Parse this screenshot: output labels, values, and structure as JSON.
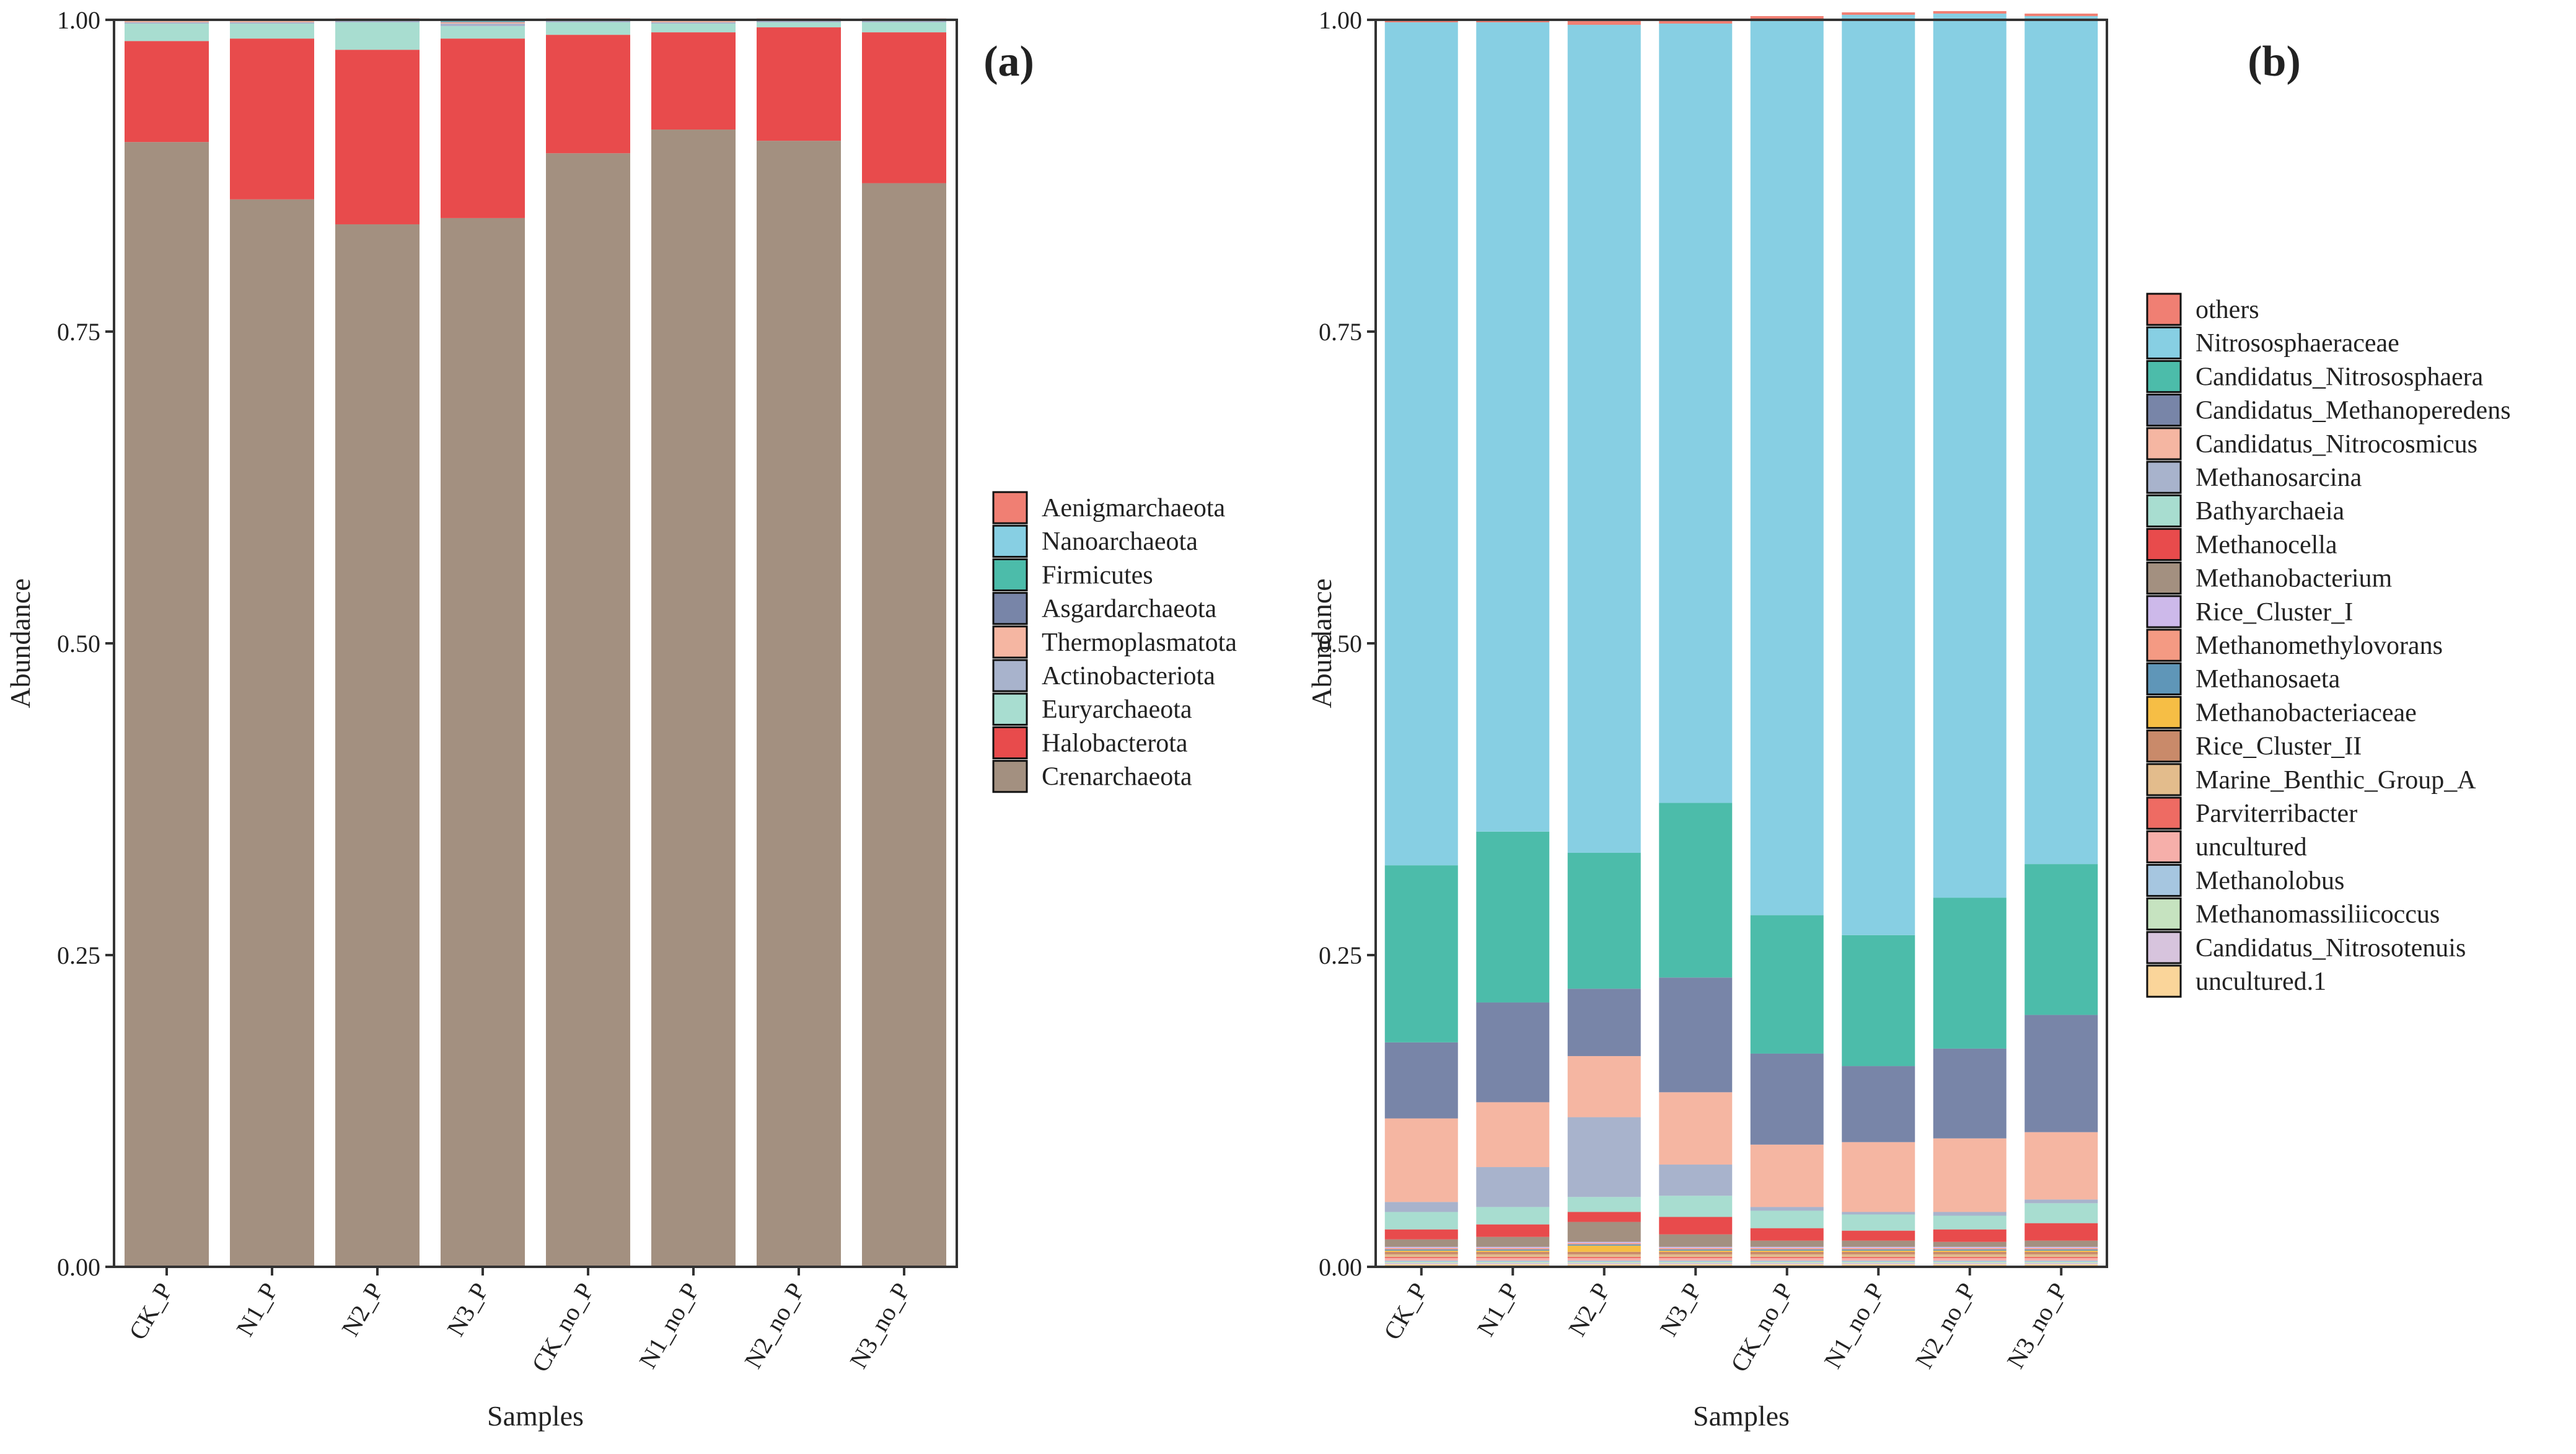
{
  "chart_data": [
    {
      "panel_label": "(a)",
      "type": "bar",
      "stacked": true,
      "xlabel": "Samples",
      "ylabel": "Abundance",
      "ylim": [
        0,
        1
      ],
      "y_ticks": [
        "0.00",
        "0.25",
        "0.50",
        "0.75",
        "1.00"
      ],
      "categories": [
        "CK_P",
        "N1_P",
        "N2_P",
        "N3_P",
        "CK_no_P",
        "N1_no_P",
        "N2_no_P",
        "N3_no_P"
      ],
      "legend_position": "right",
      "series": [
        {
          "name": "Crenarchaeota",
          "color": "#A39080",
          "values": [
            0.902,
            0.856,
            0.836,
            0.841,
            0.893,
            0.912,
            0.903,
            0.869
          ]
        },
        {
          "name": "Halobacterota",
          "color": "#E84B4C",
          "values": [
            0.081,
            0.129,
            0.14,
            0.144,
            0.095,
            0.078,
            0.091,
            0.121
          ]
        },
        {
          "name": "Euryarchaeota",
          "color": "#A8DDD0",
          "values": [
            0.014,
            0.012,
            0.022,
            0.01,
            0.01,
            0.007,
            0.004,
            0.008
          ]
        },
        {
          "name": "Actinobacteriota",
          "color": "#A8B3CC",
          "values": [
            0.001,
            0.001,
            0.001,
            0.002,
            0.001,
            0.001,
            0.001,
            0.001
          ]
        },
        {
          "name": "Thermoplasmatota",
          "color": "#F5B6A2",
          "values": [
            0.001,
            0.001,
            0.001,
            0.001,
            0.001,
            0.001,
            0.001,
            0.001
          ]
        },
        {
          "name": "Asgardarchaeota",
          "color": "#7885A8",
          "values": [
            0.0005,
            0.0005,
            0.0005,
            0.0005,
            0.0005,
            0.0005,
            0.0005,
            0.0005
          ]
        },
        {
          "name": "Firmicutes",
          "color": "#4CBCAA",
          "values": [
            0.0003,
            0.0003,
            0.0003,
            0.0003,
            0.0003,
            0.0003,
            0.0003,
            0.0003
          ]
        },
        {
          "name": "Nanoarchaeota",
          "color": "#87CFE3",
          "values": [
            0.0002,
            0.0002,
            0.0002,
            0.0002,
            0.0002,
            0.0002,
            0.0002,
            0.0002
          ]
        },
        {
          "name": "Aenigmarchaeota",
          "color": "#F07F73",
          "values": [
            0.0001,
            0.0001,
            0.0001,
            0.0001,
            0.0001,
            0.0001,
            0.0001,
            0.0001
          ]
        }
      ]
    },
    {
      "panel_label": "(b)",
      "type": "bar",
      "stacked": true,
      "xlabel": "Samples",
      "ylabel": "Abundance",
      "ylim": [
        0,
        1
      ],
      "y_ticks": [
        "0.00",
        "0.25",
        "0.50",
        "0.75",
        "1.00"
      ],
      "categories": [
        "CK_P",
        "N1_P",
        "N2_P",
        "N3_P",
        "CK_no_P",
        "N1_no_P",
        "N2_no_P",
        "N3_no_P"
      ],
      "legend_position": "right",
      "series": [
        {
          "name": "uncultured.1",
          "color": "#FAD59A",
          "values": [
            0.002,
            0.002,
            0.002,
            0.002,
            0.002,
            0.002,
            0.002,
            0.002
          ]
        },
        {
          "name": "Candidatus_Nitrosotenuis",
          "color": "#D7C4DD",
          "values": [
            0.001,
            0.001,
            0.001,
            0.001,
            0.001,
            0.001,
            0.001,
            0.001
          ]
        },
        {
          "name": "Methanomassiliicoccus",
          "color": "#C6E3C0",
          "values": [
            0.001,
            0.001,
            0.001,
            0.001,
            0.001,
            0.001,
            0.001,
            0.001
          ]
        },
        {
          "name": "Methanolobus",
          "color": "#A6C6E0",
          "values": [
            0.001,
            0.001,
            0.001,
            0.001,
            0.001,
            0.001,
            0.001,
            0.001
          ]
        },
        {
          "name": "uncultured",
          "color": "#F6AFAA",
          "values": [
            0.002,
            0.002,
            0.002,
            0.002,
            0.002,
            0.002,
            0.002,
            0.002
          ]
        },
        {
          "name": "Parviterribacter",
          "color": "#EE6B63",
          "values": [
            0.001,
            0.001,
            0.001,
            0.001,
            0.001,
            0.001,
            0.001,
            0.001
          ]
        },
        {
          "name": "Marine_Benthic_Group_A",
          "color": "#E3BC8C",
          "values": [
            0.002,
            0.002,
            0.002,
            0.002,
            0.002,
            0.002,
            0.002,
            0.002
          ]
        },
        {
          "name": "Rice_Cluster_II",
          "color": "#C98A6A",
          "values": [
            0.002,
            0.002,
            0.002,
            0.002,
            0.002,
            0.002,
            0.002,
            0.002
          ]
        },
        {
          "name": "Methanobacteriaceae",
          "color": "#F6BE45",
          "values": [
            0.001,
            0.001,
            0.005,
            0.001,
            0.001,
            0.001,
            0.001,
            0.001
          ]
        },
        {
          "name": "Methanosaeta",
          "color": "#5F96B8",
          "values": [
            0.001,
            0.001,
            0.001,
            0.001,
            0.001,
            0.001,
            0.001,
            0.001
          ]
        },
        {
          "name": "Methanomethylovorans",
          "color": "#F49A83",
          "values": [
            0.001,
            0.001,
            0.001,
            0.001,
            0.001,
            0.001,
            0.001,
            0.001
          ]
        },
        {
          "name": "Rice_Cluster_I",
          "color": "#CDB9EA",
          "values": [
            0.001,
            0.001,
            0.001,
            0.001,
            0.001,
            0.001,
            0.001,
            0.001
          ]
        },
        {
          "name": "Methanobacterium",
          "color": "#A39080",
          "values": [
            0.006,
            0.008,
            0.016,
            0.01,
            0.005,
            0.005,
            0.004,
            0.005
          ]
        },
        {
          "name": "Methanocella",
          "color": "#E84B4C",
          "values": [
            0.008,
            0.01,
            0.008,
            0.014,
            0.01,
            0.008,
            0.01,
            0.014
          ]
        },
        {
          "name": "Bathyarchaeia",
          "color": "#A8DDD0",
          "values": [
            0.014,
            0.014,
            0.012,
            0.017,
            0.014,
            0.013,
            0.011,
            0.016
          ]
        },
        {
          "name": "Methanosarcina",
          "color": "#A8B3CC",
          "values": [
            0.008,
            0.032,
            0.064,
            0.025,
            0.003,
            0.002,
            0.003,
            0.003
          ]
        },
        {
          "name": "Candidatus_Nitrocosmicus",
          "color": "#F5B6A2",
          "values": [
            0.067,
            0.052,
            0.049,
            0.058,
            0.05,
            0.056,
            0.059,
            0.054
          ]
        },
        {
          "name": "Candidatus_Methanoperedens",
          "color": "#7885A8",
          "values": [
            0.061,
            0.08,
            0.054,
            0.092,
            0.073,
            0.061,
            0.072,
            0.094
          ]
        },
        {
          "name": "Candidatus_Nitrososphaera",
          "color": "#4CBCAA",
          "values": [
            0.142,
            0.137,
            0.109,
            0.14,
            0.111,
            0.105,
            0.121,
            0.121
          ]
        },
        {
          "name": "Nitrososphaeraceae",
          "color": "#87CFE3",
          "values": [
            0.676,
            0.649,
            0.664,
            0.625,
            0.719,
            0.738,
            0.709,
            0.68
          ]
        },
        {
          "name": "others",
          "color": "#F07F73",
          "values": [
            0.002,
            0.002,
            0.004,
            0.004,
            0.002,
            0.002,
            0.002,
            0.002
          ]
        }
      ]
    }
  ]
}
